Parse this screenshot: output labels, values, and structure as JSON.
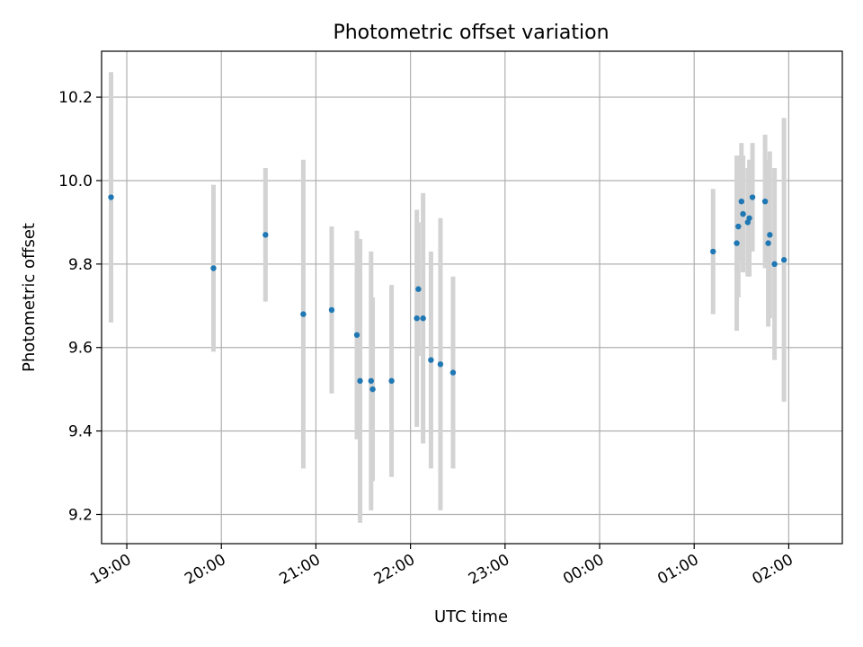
{
  "chart_data": {
    "type": "scatter",
    "title": "Photometric offset variation",
    "xlabel": "UTC time",
    "ylabel": "Photometric offset",
    "x_axis_type": "time",
    "xlim": [
      "18:44",
      "02:34"
    ],
    "xticks": [
      "19:00",
      "20:00",
      "21:00",
      "22:00",
      "23:00",
      "00:00",
      "01:00",
      "02:00"
    ],
    "ylim": [
      9.13,
      10.31
    ],
    "yticks": [
      "9.2",
      "9.4",
      "9.6",
      "9.8",
      "10.0",
      "10.2"
    ],
    "grid": true,
    "legend": "none",
    "colors": {
      "point": "#1f77b4",
      "errorbar": "#d3d3d3",
      "grid": "#b0b0b0"
    },
    "series": [
      {
        "points": [
          {
            "x": "18:50",
            "y": 9.96,
            "err": 0.3
          },
          {
            "x": "19:55",
            "y": 9.79,
            "err": 0.2
          },
          {
            "x": "20:28",
            "y": 9.87,
            "err": 0.16
          },
          {
            "x": "20:52",
            "y": 9.68,
            "err": 0.37
          },
          {
            "x": "21:10",
            "y": 9.69,
            "err": 0.2
          },
          {
            "x": "21:26",
            "y": 9.63,
            "err": 0.25
          },
          {
            "x": "21:28",
            "y": 9.52,
            "err": 0.34
          },
          {
            "x": "21:35",
            "y": 9.52,
            "err": 0.31
          },
          {
            "x": "21:36",
            "y": 9.5,
            "err": 0.22
          },
          {
            "x": "21:48",
            "y": 9.52,
            "err": 0.23
          },
          {
            "x": "22:04",
            "y": 9.67,
            "err": 0.26
          },
          {
            "x": "22:05",
            "y": 9.74,
            "err": 0.16
          },
          {
            "x": "22:08",
            "y": 9.67,
            "err": 0.3
          },
          {
            "x": "22:13",
            "y": 9.57,
            "err": 0.26
          },
          {
            "x": "22:19",
            "y": 9.56,
            "err": 0.35
          },
          {
            "x": "22:27",
            "y": 9.54,
            "err": 0.23
          },
          {
            "x": "01:12",
            "y": 9.83,
            "err": 0.15
          },
          {
            "x": "01:27",
            "y": 9.85,
            "err": 0.21
          },
          {
            "x": "01:28",
            "y": 9.89,
            "err": 0.17
          },
          {
            "x": "01:30",
            "y": 9.95,
            "err": 0.14
          },
          {
            "x": "01:31",
            "y": 9.92,
            "err": 0.14
          },
          {
            "x": "01:34",
            "y": 9.9,
            "err": 0.13
          },
          {
            "x": "01:35",
            "y": 9.91,
            "err": 0.14
          },
          {
            "x": "01:37",
            "y": 9.96,
            "err": 0.13
          },
          {
            "x": "01:45",
            "y": 9.95,
            "err": 0.16
          },
          {
            "x": "01:47",
            "y": 9.85,
            "err": 0.2
          },
          {
            "x": "01:48",
            "y": 9.87,
            "err": 0.2
          },
          {
            "x": "01:51",
            "y": 9.8,
            "err": 0.23
          },
          {
            "x": "01:57",
            "y": 9.81,
            "err": 0.34
          }
        ]
      }
    ]
  }
}
